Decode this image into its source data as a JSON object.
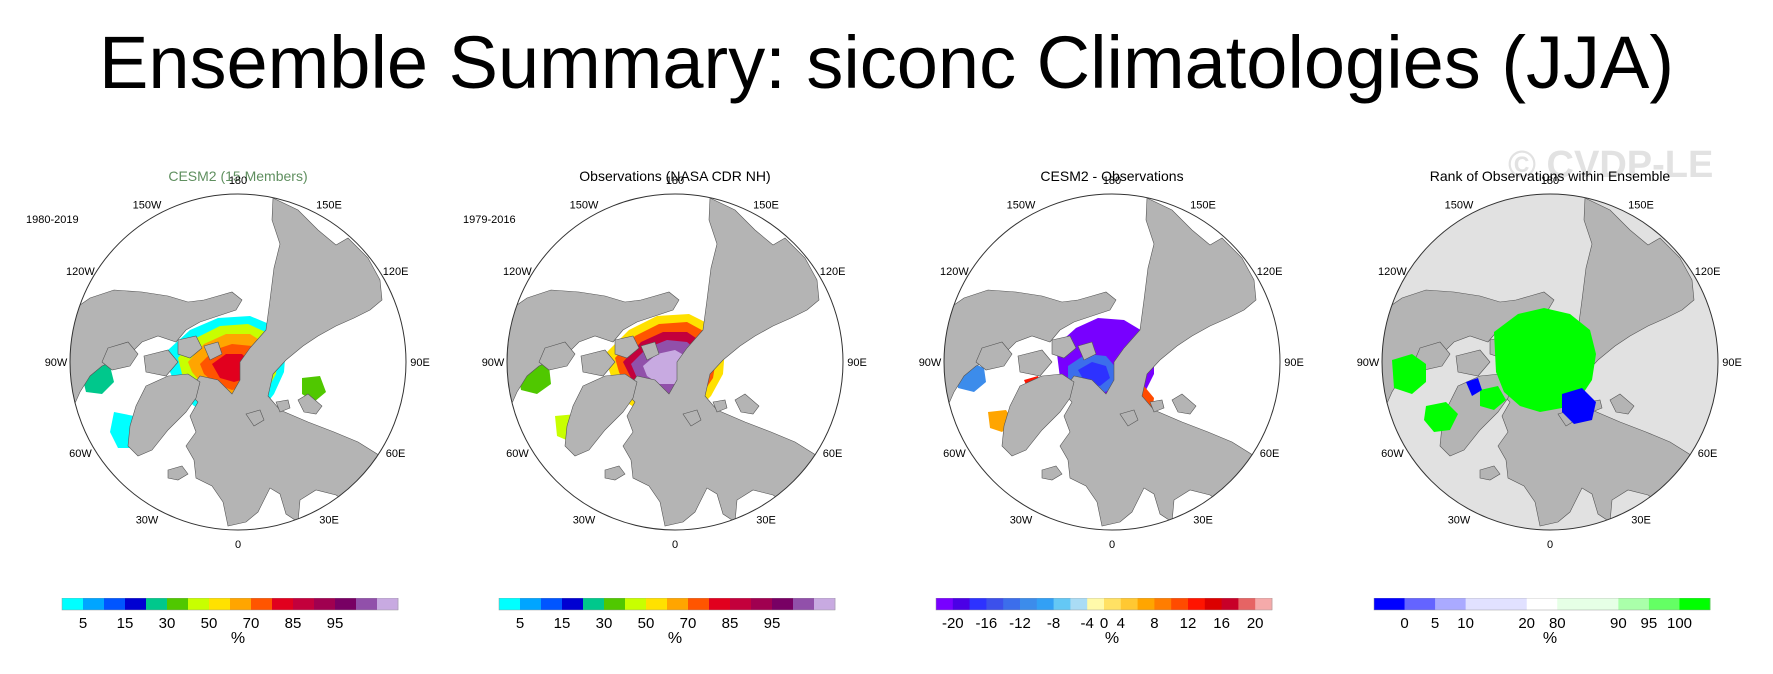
{
  "title": "Ensemble Summary: siconc Climatologies (JJA)",
  "watermark": "© CVDP-LE",
  "units": "%",
  "colors": {
    "land": "#b4b4b4",
    "ocean": "#ffffff",
    "rank_background": "#e1e1e1",
    "title_green": "#5f8f5f"
  },
  "longitude_labels": [
    "180",
    "150E",
    "120E",
    "90E",
    "60E",
    "30E",
    "0",
    "30W",
    "60W",
    "90W",
    "120W",
    "150W"
  ],
  "panels": [
    {
      "id": "model",
      "title": "CESM2 (15 Members)",
      "title_color": "#5f8f5f",
      "period": "1980-2019",
      "colorbar": {
        "colors": [
          "#00ffff",
          "#00a5ff",
          "#0055ff",
          "#0000d2",
          "#00c88c",
          "#50c800",
          "#c8ff00",
          "#ffe100",
          "#ffa500",
          "#ff5500",
          "#e1001e",
          "#c3003c",
          "#a00050",
          "#780064",
          "#9150aa",
          "#c8aae1"
        ],
        "labels": [
          "5",
          "15",
          "30",
          "50",
          "70",
          "85",
          "95"
        ],
        "label_positions": [
          1,
          3,
          5,
          7,
          9,
          11,
          13
        ]
      }
    },
    {
      "id": "obs",
      "title": "Observations (NASA CDR NH)",
      "title_color": "#000000",
      "period": "1979-2016",
      "colorbar": {
        "colors": [
          "#00ffff",
          "#00a5ff",
          "#0055ff",
          "#0000d2",
          "#00c88c",
          "#50c800",
          "#c8ff00",
          "#ffe100",
          "#ffa500",
          "#ff5500",
          "#e1001e",
          "#c3003c",
          "#a00050",
          "#780064",
          "#9150aa",
          "#c8aae1"
        ],
        "labels": [
          "5",
          "15",
          "30",
          "50",
          "70",
          "85",
          "95"
        ],
        "label_positions": [
          1,
          3,
          5,
          7,
          9,
          11,
          13
        ]
      }
    },
    {
      "id": "diff",
      "title": "CESM2 - Observations",
      "title_color": "#000000",
      "period": "",
      "colorbar": {
        "colors": [
          "#7800ff",
          "#4b00e6",
          "#2d32ff",
          "#3c50eb",
          "#3c6eeb",
          "#3c8ceb",
          "#32a0f5",
          "#64c8f5",
          "#aadcf5",
          "#fffaaa",
          "#ffe164",
          "#ffc832",
          "#ffa500",
          "#ff7d00",
          "#ff4b00",
          "#ff1400",
          "#dc0000",
          "#c80028",
          "#e66464",
          "#f5aaaa"
        ],
        "labels": [
          "-20",
          "-16",
          "-12",
          "-8",
          "-4",
          "0",
          "4",
          "8",
          "12",
          "16",
          "20"
        ],
        "label_positions": [
          1,
          3,
          5,
          7,
          9,
          10,
          11,
          13,
          15,
          17,
          19
        ]
      }
    },
    {
      "id": "rank",
      "title": "Rank of Observations within Ensemble",
      "title_color": "#000000",
      "period": "",
      "colorbar": {
        "colors": [
          "#0000ff",
          "#6464ff",
          "#aaaaff",
          "#e1e1ff",
          "#e1e1ff",
          "#ffffff",
          "#e6ffe6",
          "#e6ffe6",
          "#aaffaa",
          "#64ff64",
          "#00ff00"
        ],
        "labels": [
          "0",
          "5",
          "10",
          "20",
          "80",
          "90",
          "95",
          "100"
        ],
        "label_positions": [
          1,
          2,
          3,
          5,
          6,
          8,
          9,
          10
        ]
      }
    }
  ]
}
